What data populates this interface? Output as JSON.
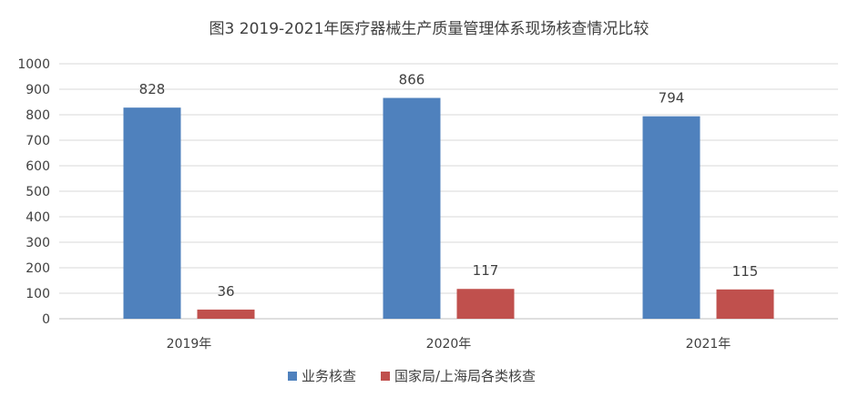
{
  "chart_data": {
    "type": "bar",
    "title": "图3 2019-2021年医疗器械生产质量管理体系现场核查情况比较",
    "categories": [
      "2019年",
      "2020年",
      "2021年"
    ],
    "series": [
      {
        "name": "业务核查",
        "values": [
          828,
          866,
          794
        ],
        "color": "#4f81bd"
      },
      {
        "name": "国家局/上海局各类核查",
        "values": [
          36,
          117,
          115
        ],
        "color": "#c0504d"
      }
    ],
    "ylim": [
      0,
      1000
    ],
    "yticks": [
      0,
      100,
      200,
      300,
      400,
      500,
      600,
      700,
      800,
      900,
      1000
    ],
    "grid": true,
    "legend": "bottom"
  }
}
